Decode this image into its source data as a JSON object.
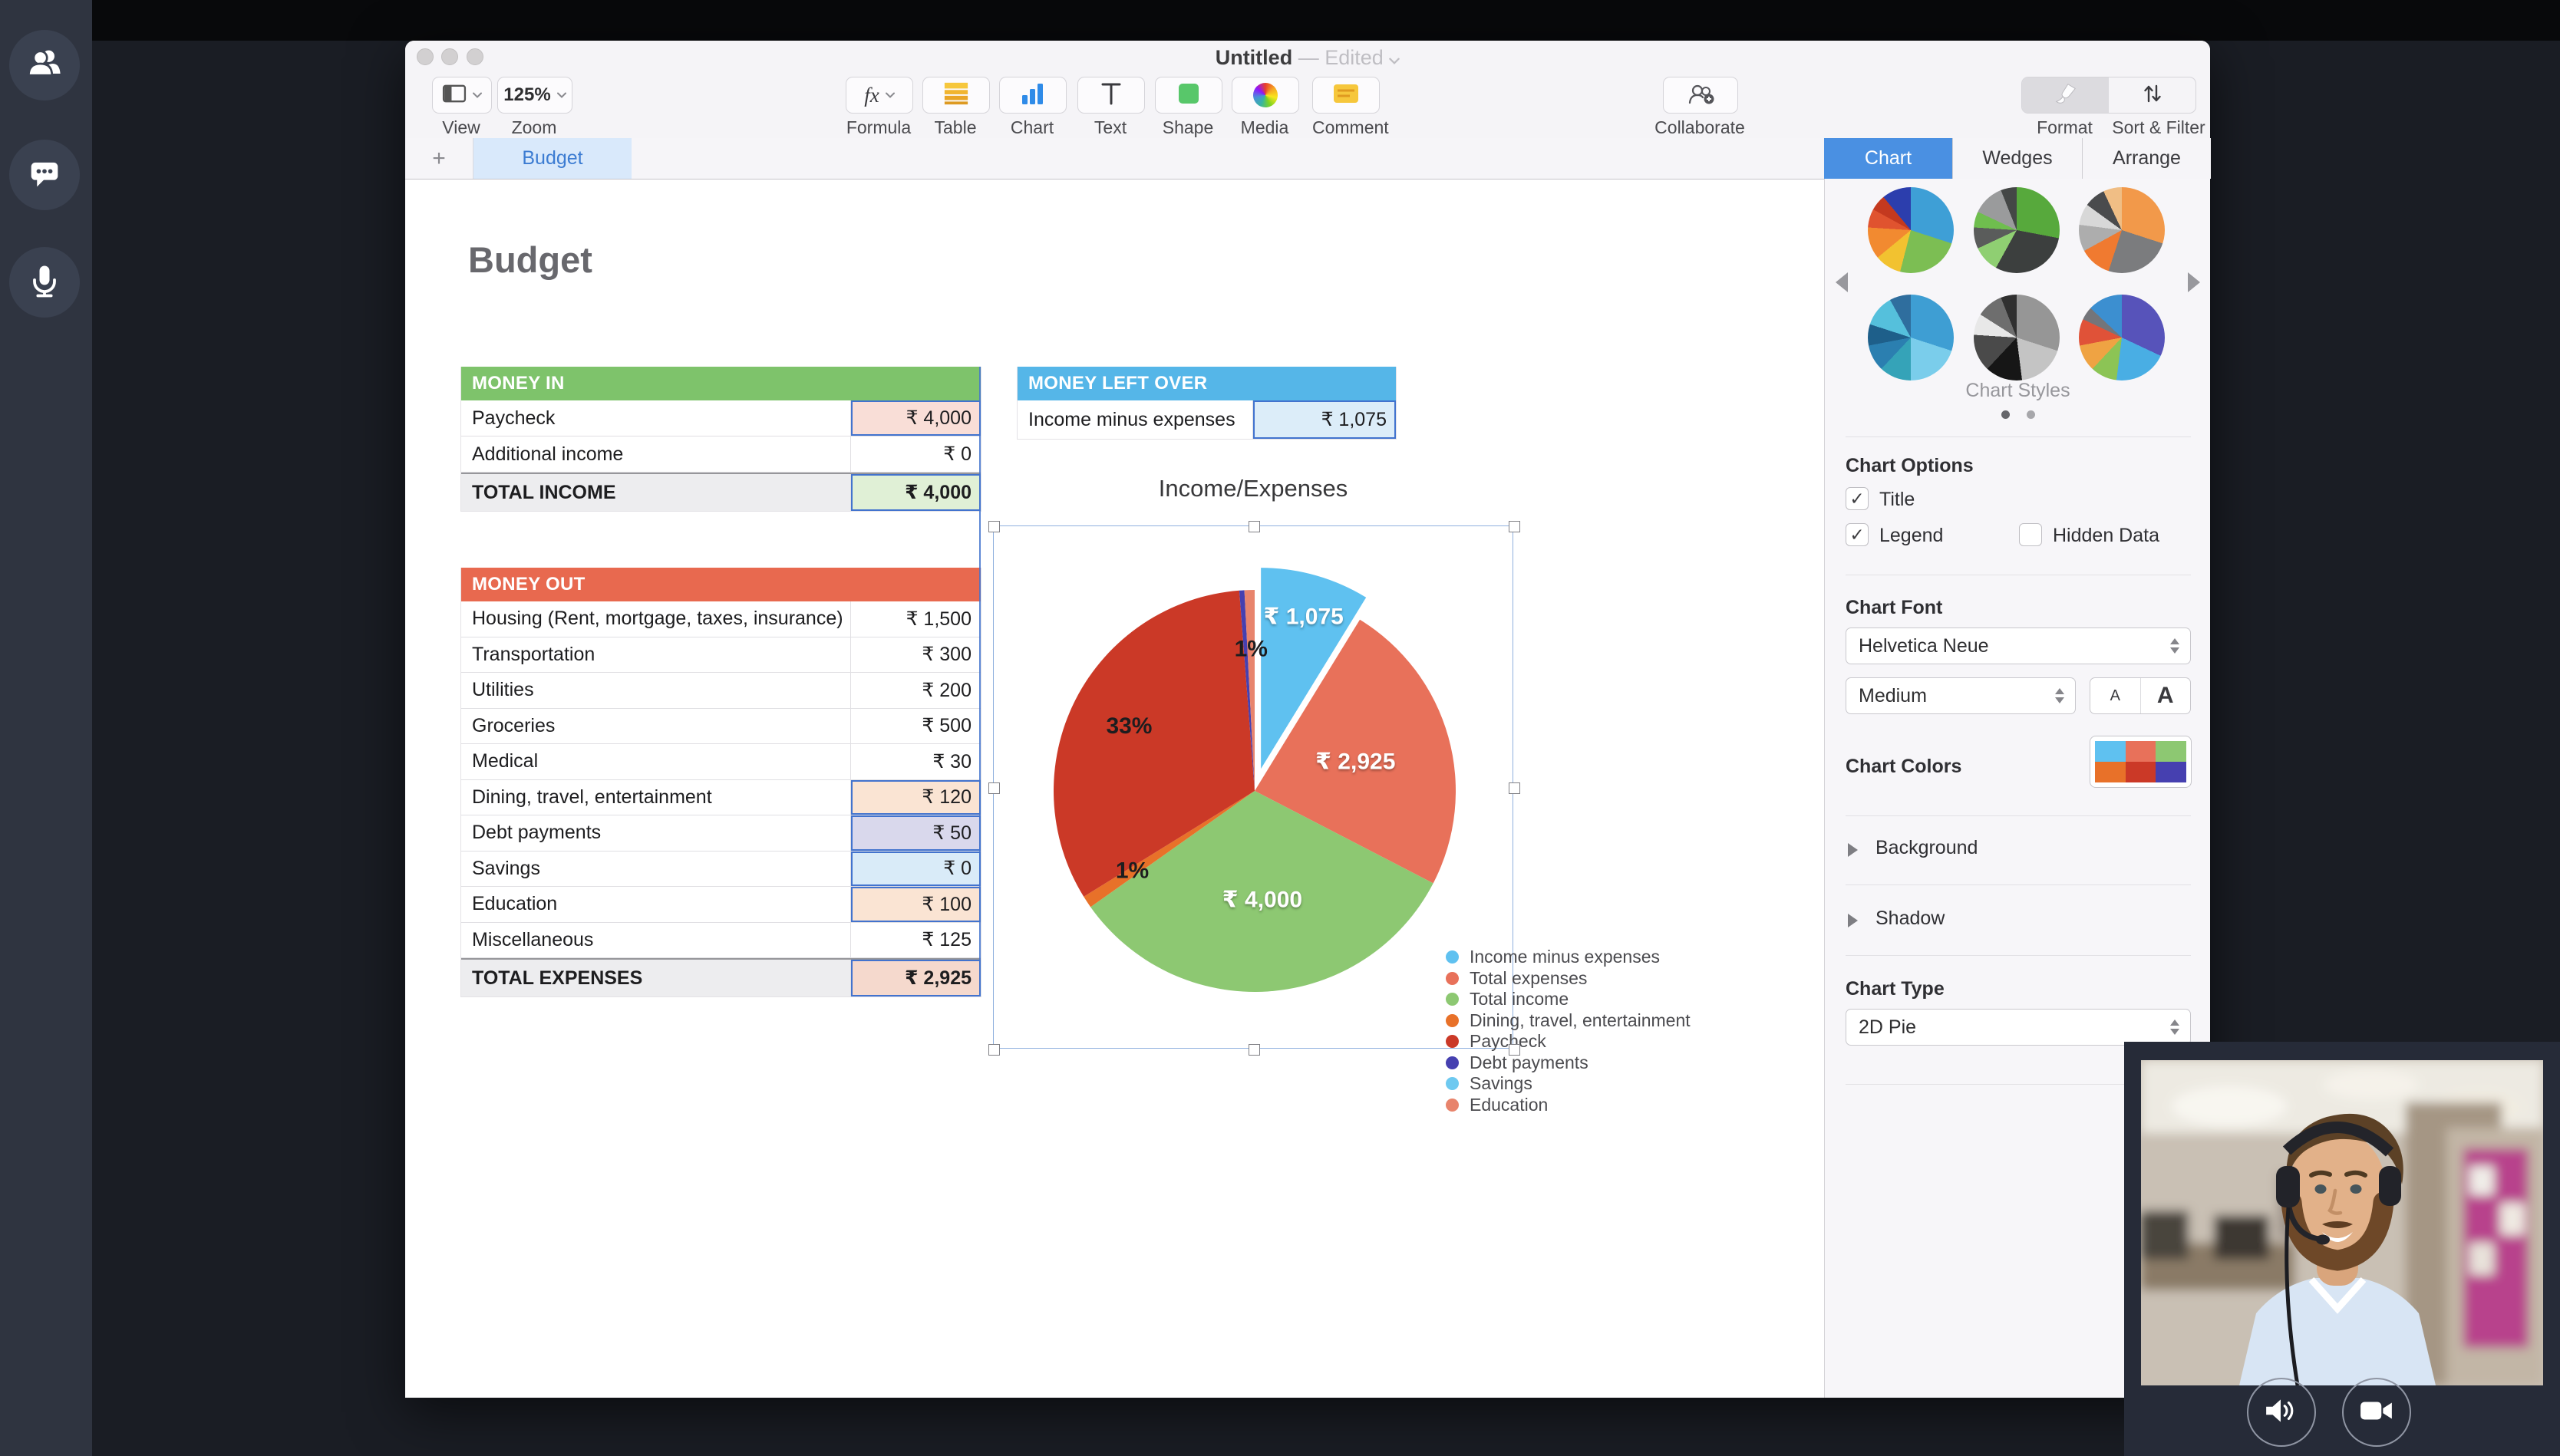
{
  "call_ui": {
    "sidebar_buttons": [
      {
        "icon": "participants-icon"
      },
      {
        "icon": "chat-icon"
      },
      {
        "icon": "microphone-icon"
      }
    ],
    "webcam_buttons": [
      {
        "icon": "speaker-icon"
      },
      {
        "icon": "camera-icon"
      }
    ]
  },
  "window": {
    "title": "Untitled",
    "status": "— Edited",
    "toolbar": {
      "view": {
        "label": "View"
      },
      "zoom": {
        "label": "Zoom",
        "value": "125%"
      },
      "items": [
        {
          "label": "Formula",
          "icon": "formula-icon"
        },
        {
          "label": "Table",
          "icon": "table-icon"
        },
        {
          "label": "Chart",
          "icon": "chart-icon"
        },
        {
          "label": "Text",
          "icon": "text-icon"
        },
        {
          "label": "Shape",
          "icon": "shape-icon"
        },
        {
          "label": "Media",
          "icon": "media-icon"
        },
        {
          "label": "Comment",
          "icon": "comment-icon"
        }
      ],
      "collaborate": {
        "label": "Collaborate",
        "icon": "collaborate-icon"
      },
      "format": {
        "label": "Format",
        "icon": "paintbrush-icon",
        "active": true
      },
      "sort": {
        "label": "Sort & Filter",
        "icon": "sort-icon"
      }
    },
    "sheet_tabs": {
      "add_label": "+",
      "tabs": [
        {
          "label": "Budget",
          "active": true
        }
      ]
    },
    "panel_tabs": [
      {
        "label": "Chart",
        "active": true
      },
      {
        "label": "Wedges",
        "active": false
      },
      {
        "label": "Arrange",
        "active": false
      }
    ]
  },
  "sheet": {
    "heading": "Budget",
    "tables": {
      "money_in": {
        "header": "MONEY IN",
        "header_color": "#7EC36B",
        "rows": [
          {
            "label": "Paycheck",
            "value": "₹ 4,000",
            "hl": "pink",
            "sel": true
          },
          {
            "label": "Additional income",
            "value": "₹ 0"
          }
        ],
        "total": {
          "label": "TOTAL INCOME",
          "value": "₹ 4,000",
          "hl": "green",
          "sel": true
        }
      },
      "money_left_over": {
        "header": "MONEY LEFT OVER",
        "header_color": "#55B6E8",
        "rows": [
          {
            "label": "Income minus expenses",
            "value": "₹ 1,075",
            "hl": "blue",
            "sel": true
          }
        ]
      },
      "money_out": {
        "header": "MONEY OUT",
        "header_color": "#E8694F",
        "rows": [
          {
            "label": "Housing (Rent, mortgage, taxes, insurance)",
            "value": "₹ 1,500"
          },
          {
            "label": "Transportation",
            "value": "₹ 300"
          },
          {
            "label": "Utilities",
            "value": "₹ 200"
          },
          {
            "label": "Groceries",
            "value": "₹ 500"
          },
          {
            "label": "Medical",
            "value": "₹ 30"
          },
          {
            "label": "Dining, travel, entertainment",
            "value": "₹ 120",
            "hl": "peach",
            "sel": true
          },
          {
            "label": "Debt payments",
            "value": "₹ 50",
            "hl": "lavender",
            "sel": true
          },
          {
            "label": "Savings",
            "value": "₹ 0",
            "hl": "ltblue",
            "sel": true
          },
          {
            "label": "Education",
            "value": "₹ 100",
            "hl": "peach",
            "sel": true
          },
          {
            "label": "Miscellaneous",
            "value": "₹ 125"
          }
        ],
        "total": {
          "label": "TOTAL EXPENSES",
          "value": "₹ 2,925",
          "hl": "rose",
          "sel": true
        }
      }
    }
  },
  "chart_data": {
    "type": "pie",
    "title": "Income/Expenses",
    "legend_position": "bottom-right",
    "total": 12270,
    "series": [
      {
        "name": "Income minus expenses",
        "value": 1075,
        "color": "#5FC1F0",
        "label": "₹ 1,075",
        "label_style": "light",
        "label_r": 0.78,
        "exploded": true
      },
      {
        "name": "Total expenses",
        "value": 2925,
        "color": "#E8715A",
        "label": "₹ 2,925",
        "label_style": "light",
        "label_r": 0.52
      },
      {
        "name": "Total income",
        "value": 4000,
        "color": "#8DC872",
        "label": "₹ 4,000",
        "label_style": "light",
        "label_r": 0.55
      },
      {
        "name": "Dining, travel, entertainment",
        "value": 120,
        "color": "#E87129",
        "label": "1%",
        "label_style": "dark",
        "label_r": 0.73
      },
      {
        "name": "Paycheck",
        "value": 4000,
        "color": "#CB3927",
        "label": "33%",
        "label_style": "dark",
        "label_r": 0.7
      },
      {
        "name": "Debt payments",
        "value": 50,
        "color": "#4640B0",
        "label": "",
        "label_style": "dark",
        "label_r": 0
      },
      {
        "name": "Savings",
        "value": 0,
        "color": "#6EC9F0",
        "label": "",
        "label_style": "dark",
        "label_r": 0
      },
      {
        "name": "Education",
        "value": 100,
        "color": "#E8846C",
        "label": "1%",
        "label_style": "dark",
        "label_r": 0.7
      }
    ]
  },
  "panel": {
    "styles": {
      "label": "Chart Styles",
      "page_dots": 2,
      "thumbnails": [
        [
          [
            "#3E9FD6",
            0.3
          ],
          [
            "#7CBE53",
            0.24
          ],
          [
            "#F2C230",
            0.1
          ],
          [
            "#F28A30",
            0.12
          ],
          [
            "#E0532F",
            0.07
          ],
          [
            "#C4391F",
            0.06
          ],
          [
            "#2C3EAD",
            0.11
          ]
        ],
        [
          [
            "#57A93C",
            0.28
          ],
          [
            "#3C3F3E",
            0.3
          ],
          [
            "#8FCF72",
            0.1
          ],
          [
            "#5A5C5B",
            0.08
          ],
          [
            "#6FBE4E",
            0.06
          ],
          [
            "#9A9B9C",
            0.12
          ],
          [
            "#444746",
            0.06
          ]
        ],
        [
          [
            "#F2994A",
            0.3
          ],
          [
            "#7B7C7E",
            0.25
          ],
          [
            "#F07A30",
            0.12
          ],
          [
            "#ADADAD",
            0.1
          ],
          [
            "#D8D8D8",
            0.08
          ],
          [
            "#4A4B4D",
            0.08
          ],
          [
            "#F0BE85",
            0.07
          ]
        ],
        [
          [
            "#3E9ED3",
            0.3
          ],
          [
            "#7ACDEB",
            0.2
          ],
          [
            "#35A3B8",
            0.12
          ],
          [
            "#2B7FB0",
            0.1
          ],
          [
            "#1E5F8A",
            0.08
          ],
          [
            "#55C0DC",
            0.12
          ],
          [
            "#2F6E9E",
            0.08
          ]
        ],
        [
          [
            "#969696",
            0.3
          ],
          [
            "#C4C4C4",
            0.18
          ],
          [
            "#161616",
            0.14
          ],
          [
            "#4A4A4A",
            0.14
          ],
          [
            "#E8E8E8",
            0.08
          ],
          [
            "#6E6E6E",
            0.1
          ],
          [
            "#303030",
            0.06
          ]
        ],
        [
          [
            "#5753BA",
            0.32
          ],
          [
            "#49AEE4",
            0.2
          ],
          [
            "#8CC455",
            0.1
          ],
          [
            "#EFA343",
            0.1
          ],
          [
            "#E05238",
            0.1
          ],
          [
            "#74757A",
            0.05
          ],
          [
            "#3C8FD0",
            0.13
          ]
        ]
      ]
    },
    "options": {
      "heading": "Chart Options",
      "checkboxes": [
        {
          "label": "Title",
          "checked": true
        },
        {
          "label": "Legend",
          "checked": true
        },
        {
          "label": "Hidden Data",
          "checked": false
        }
      ]
    },
    "font": {
      "heading": "Chart Font",
      "family": "Helvetica Neue",
      "weight": "Medium",
      "size_small": "A",
      "size_large": "A"
    },
    "colors": {
      "label": "Chart Colors",
      "swatch": [
        "#5FC1F0",
        "#E8715A",
        "#8DC872",
        "#E87129",
        "#CB3927",
        "#4640B0"
      ]
    },
    "sections": [
      {
        "label": "Background"
      },
      {
        "label": "Shadow"
      }
    ],
    "chart_type": {
      "heading": "Chart Type",
      "value": "2D Pie"
    }
  }
}
